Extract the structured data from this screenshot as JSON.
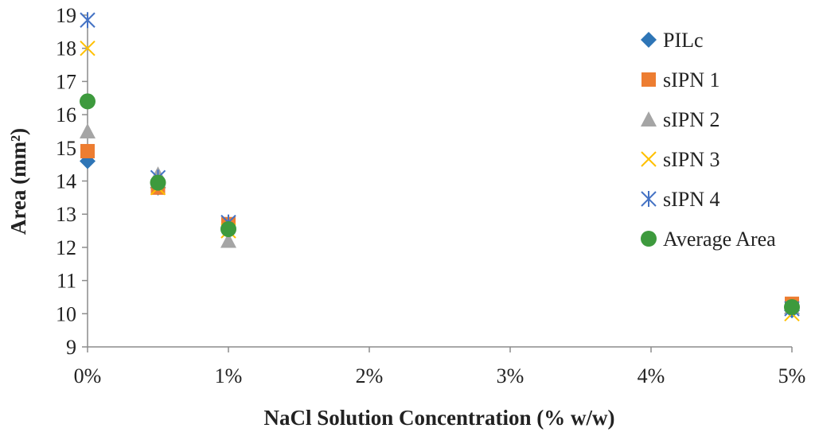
{
  "chart_data": {
    "type": "scatter",
    "title": "",
    "xlabel": "NaCl Solution Concentration (% w/w)",
    "ylabel": "Area (mm²)",
    "xlim": [
      0,
      5
    ],
    "ylim": [
      9,
      19
    ],
    "x_ticks": [
      0,
      1,
      2,
      3,
      4,
      5
    ],
    "x_tick_labels": [
      "0%",
      "1%",
      "2%",
      "3%",
      "4%",
      "5%"
    ],
    "y_ticks": [
      9,
      10,
      11,
      12,
      13,
      14,
      15,
      16,
      17,
      18,
      19
    ],
    "y_tick_labels": [
      "9",
      "10",
      "11",
      "12",
      "13",
      "14",
      "15",
      "16",
      "17",
      "18",
      "19"
    ],
    "grid": false,
    "legend": "right",
    "series": [
      {
        "name": "PILc",
        "marker": "diamond",
        "color": "#2E75B6",
        "x": [
          0,
          0.5,
          1,
          5
        ],
        "y": [
          14.6,
          13.8,
          12.6,
          10.1
        ]
      },
      {
        "name": "sIPN 1",
        "marker": "square",
        "color": "#ED7D31",
        "x": [
          0,
          0.5,
          1,
          5
        ],
        "y": [
          14.9,
          13.8,
          12.7,
          10.3
        ]
      },
      {
        "name": "sIPN 2",
        "marker": "triangle",
        "color": "#A5A5A5",
        "x": [
          0,
          0.5,
          1,
          5
        ],
        "y": [
          15.5,
          14.2,
          12.2,
          10.2
        ]
      },
      {
        "name": "sIPN 3",
        "marker": "x",
        "color": "#FFC000",
        "x": [
          0,
          0.5,
          1,
          5
        ],
        "y": [
          18.0,
          13.8,
          12.5,
          10.0
        ]
      },
      {
        "name": "sIPN 4",
        "marker": "star",
        "color": "#4472C4",
        "x": [
          0,
          0.5,
          1,
          5
        ],
        "y": [
          18.85,
          14.1,
          12.75,
          10.15
        ]
      },
      {
        "name": "Average Area",
        "marker": "circle",
        "color": "#3D9A3D",
        "x": [
          0,
          0.5,
          1,
          5
        ],
        "y": [
          16.4,
          13.95,
          12.55,
          10.2
        ]
      }
    ]
  }
}
